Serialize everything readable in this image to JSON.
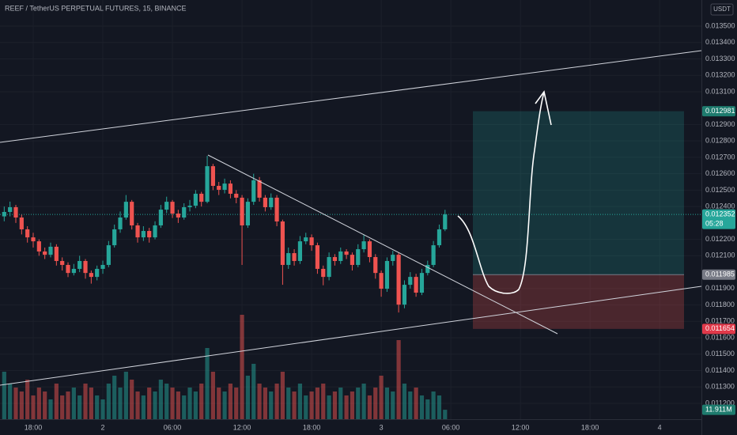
{
  "chart_data": {
    "type": "candlestick",
    "title": "REEF / TetherUS PERPETUAL FUTURES, 15, BINANCE",
    "currency": "USDT",
    "countdown": "05:28",
    "up_color": "#26a69a",
    "down_color": "#ef5350",
    "ylim": [
      0.0111036,
      0.0136591
    ],
    "yticks": [
      {
        "value": 0.0135,
        "label": "0.013500"
      },
      {
        "value": 0.0134,
        "label": "0.013400"
      },
      {
        "value": 0.0133,
        "label": "0.013300"
      },
      {
        "value": 0.0132,
        "label": "0.013200"
      },
      {
        "value": 0.0131,
        "label": "0.013100"
      },
      {
        "value": 0.0129,
        "label": "0.012900"
      },
      {
        "value": 0.0128,
        "label": "0.012800"
      },
      {
        "value": 0.0127,
        "label": "0.012700"
      },
      {
        "value": 0.0126,
        "label": "0.012600"
      },
      {
        "value": 0.0125,
        "label": "0.012500"
      },
      {
        "value": 0.0124,
        "label": "0.012400"
      },
      {
        "value": 0.0122,
        "label": "0.012200"
      },
      {
        "value": 0.0121,
        "label": "0.012100"
      },
      {
        "value": 0.0119,
        "label": "0.011900"
      },
      {
        "value": 0.0118,
        "label": "0.011800"
      },
      {
        "value": 0.0117,
        "label": "0.011700"
      },
      {
        "value": 0.0116,
        "label": "0.011600"
      },
      {
        "value": 0.0115,
        "label": "0.011500"
      },
      {
        "value": 0.0114,
        "label": "0.011400"
      },
      {
        "value": 0.0113,
        "label": "0.011300"
      },
      {
        "value": 0.0112,
        "label": "0.011200"
      }
    ],
    "xlim": [
      -0.727,
      120.2
    ],
    "xticks": [
      {
        "value": 5,
        "label": "18:00"
      },
      {
        "value": 17,
        "label": "2"
      },
      {
        "value": 29,
        "label": "06:00"
      },
      {
        "value": 41,
        "label": "12:00"
      },
      {
        "value": 53,
        "label": "18:00"
      },
      {
        "value": 65,
        "label": "3"
      },
      {
        "value": 77,
        "label": "06:00"
      },
      {
        "value": 89,
        "label": "12:00"
      },
      {
        "value": 101,
        "label": "18:00"
      },
      {
        "value": 113,
        "label": "4"
      }
    ],
    "grid": true,
    "candles": [
      [
        0.01234,
        0.0124,
        0.01231,
        0.012367
      ],
      [
        0.012367,
        0.01243,
        0.01234,
        0.012396
      ],
      [
        0.012396,
        0.01241,
        0.0123,
        0.012333
      ],
      [
        0.012333,
        0.01235,
        0.01223,
        0.012261
      ],
      [
        0.012261,
        0.01228,
        0.01218,
        0.012212
      ],
      [
        0.012212,
        0.01224,
        0.01215,
        0.012188
      ],
      [
        0.012188,
        0.0122,
        0.0121,
        0.012126
      ],
      [
        0.012126,
        0.01215,
        0.01208,
        0.012106
      ],
      [
        0.012106,
        0.01218,
        0.01209,
        0.012155
      ],
      [
        0.012155,
        0.01217,
        0.01204,
        0.012068
      ],
      [
        0.012068,
        0.01209,
        0.01201,
        0.012044
      ],
      [
        0.012044,
        0.01206,
        0.01197,
        0.011995
      ],
      [
        0.011995,
        0.01205,
        0.01198,
        0.01202
      ],
      [
        0.01202,
        0.0121,
        0.012,
        0.012068
      ],
      [
        0.012068,
        0.01208,
        0.01196,
        0.011995
      ],
      [
        0.011995,
        0.01201,
        0.01193,
        0.011971
      ],
      [
        0.011971,
        0.01204,
        0.01195,
        0.01202
      ],
      [
        0.01202,
        0.01207,
        0.01199,
        0.012044
      ],
      [
        0.012044,
        0.01219,
        0.01203,
        0.012164
      ],
      [
        0.012164,
        0.01229,
        0.01215,
        0.012261
      ],
      [
        0.012261,
        0.01237,
        0.01224,
        0.012333
      ],
      [
        0.012333,
        0.01247,
        0.01232,
        0.012429
      ],
      [
        0.012429,
        0.01244,
        0.01226,
        0.012285
      ],
      [
        0.012285,
        0.0123,
        0.01218,
        0.012212
      ],
      [
        0.012212,
        0.01228,
        0.01219,
        0.012251
      ],
      [
        0.012251,
        0.01227,
        0.01218,
        0.012212
      ],
      [
        0.012212,
        0.01231,
        0.0122,
        0.012285
      ],
      [
        0.012285,
        0.01241,
        0.01227,
        0.012381
      ],
      [
        0.012381,
        0.01246,
        0.01236,
        0.012429
      ],
      [
        0.012429,
        0.01244,
        0.01233,
        0.012357
      ],
      [
        0.012357,
        0.01238,
        0.0123,
        0.012333
      ],
      [
        0.012333,
        0.01242,
        0.01232,
        0.012396
      ],
      [
        0.012396,
        0.01244,
        0.01237,
        0.012405
      ],
      [
        0.012405,
        0.0125,
        0.01239,
        0.012478
      ],
      [
        0.012478,
        0.01249,
        0.0124,
        0.012429
      ],
      [
        0.012429,
        0.012709,
        0.01242,
        0.012646
      ],
      [
        0.012646,
        0.01266,
        0.0125,
        0.012526
      ],
      [
        0.012526,
        0.01255,
        0.01247,
        0.012502
      ],
      [
        0.012502,
        0.01257,
        0.01248,
        0.01254
      ],
      [
        0.01254,
        0.01256,
        0.01245,
        0.012478
      ],
      [
        0.012478,
        0.0125,
        0.01242,
        0.012454
      ],
      [
        0.012454,
        0.01247,
        0.012044,
        0.012285
      ],
      [
        0.012285,
        0.01245,
        0.01227,
        0.012429
      ],
      [
        0.012429,
        0.0126,
        0.01241,
        0.01256
      ],
      [
        0.01256,
        0.01258,
        0.01243,
        0.012454
      ],
      [
        0.012454,
        0.01247,
        0.01237,
        0.012396
      ],
      [
        0.012396,
        0.01248,
        0.01238,
        0.012454
      ],
      [
        0.012454,
        0.01247,
        0.01228,
        0.012309
      ],
      [
        0.012309,
        0.01232,
        0.011923,
        0.012044
      ],
      [
        0.012044,
        0.01215,
        0.01202,
        0.012116
      ],
      [
        0.012116,
        0.01214,
        0.01204,
        0.012068
      ],
      [
        0.012068,
        0.01222,
        0.01205,
        0.012188
      ],
      [
        0.012188,
        0.01224,
        0.01217,
        0.012212
      ],
      [
        0.012212,
        0.01223,
        0.01213,
        0.012164
      ],
      [
        0.012164,
        0.01218,
        0.01199,
        0.01202
      ],
      [
        0.01202,
        0.01204,
        0.01192,
        0.011971
      ],
      [
        0.011971,
        0.01212,
        0.01195,
        0.012092
      ],
      [
        0.012092,
        0.01211,
        0.01204,
        0.012068
      ],
      [
        0.012068,
        0.01215,
        0.01205,
        0.012126
      ],
      [
        0.012126,
        0.01214,
        0.01208,
        0.012106
      ],
      [
        0.012106,
        0.01212,
        0.01201,
        0.012044
      ],
      [
        0.012044,
        0.01217,
        0.01203,
        0.01214
      ],
      [
        0.01214,
        0.01223,
        0.01212,
        0.012188
      ],
      [
        0.012188,
        0.0122,
        0.01206,
        0.012092
      ],
      [
        0.012092,
        0.01211,
        0.01196,
        0.011995
      ],
      [
        0.011995,
        0.01201,
        0.01185,
        0.011899
      ],
      [
        0.011899,
        0.01209,
        0.01188,
        0.012068
      ],
      [
        0.012068,
        0.01213,
        0.01204,
        0.012106
      ],
      [
        0.012106,
        0.01212,
        0.011754,
        0.011802
      ],
      [
        0.011802,
        0.01195,
        0.01178,
        0.011923
      ],
      [
        0.011923,
        0.012,
        0.0119,
        0.011971
      ],
      [
        0.011971,
        0.01199,
        0.01185,
        0.011875
      ],
      [
        0.011875,
        0.01202,
        0.01186,
        0.011995
      ],
      [
        0.011995,
        0.01207,
        0.01198,
        0.012044
      ],
      [
        0.012044,
        0.01219,
        0.01203,
        0.012164
      ],
      [
        0.012164,
        0.01229,
        0.01215,
        0.012261
      ],
      [
        0.012261,
        0.01238,
        0.01225,
        0.012352
      ]
    ],
    "volume": [
      60000000,
      45000000,
      40000000,
      35000000,
      50000000,
      30000000,
      40000000,
      35000000,
      25000000,
      45000000,
      30000000,
      35000000,
      40000000,
      30000000,
      45000000,
      40000000,
      30000000,
      25000000,
      45000000,
      55000000,
      40000000,
      60000000,
      50000000,
      35000000,
      30000000,
      40000000,
      35000000,
      50000000,
      45000000,
      40000000,
      35000000,
      30000000,
      40000000,
      35000000,
      45000000,
      90000000,
      60000000,
      40000000,
      35000000,
      45000000,
      40000000,
      132000000,
      55000000,
      70000000,
      45000000,
      40000000,
      35000000,
      45000000,
      60000000,
      40000000,
      35000000,
      45000000,
      30000000,
      35000000,
      40000000,
      45000000,
      30000000,
      35000000,
      40000000,
      30000000,
      35000000,
      40000000,
      45000000,
      30000000,
      40000000,
      55000000,
      40000000,
      35000000,
      100000000,
      45000000,
      35000000,
      40000000,
      30000000,
      25000000,
      35000000,
      30000000,
      11911000
    ],
    "volume_label": "11.911M",
    "position": {
      "target": 0.012981,
      "entry": 0.011985,
      "stop": 0.011654
    }
  }
}
